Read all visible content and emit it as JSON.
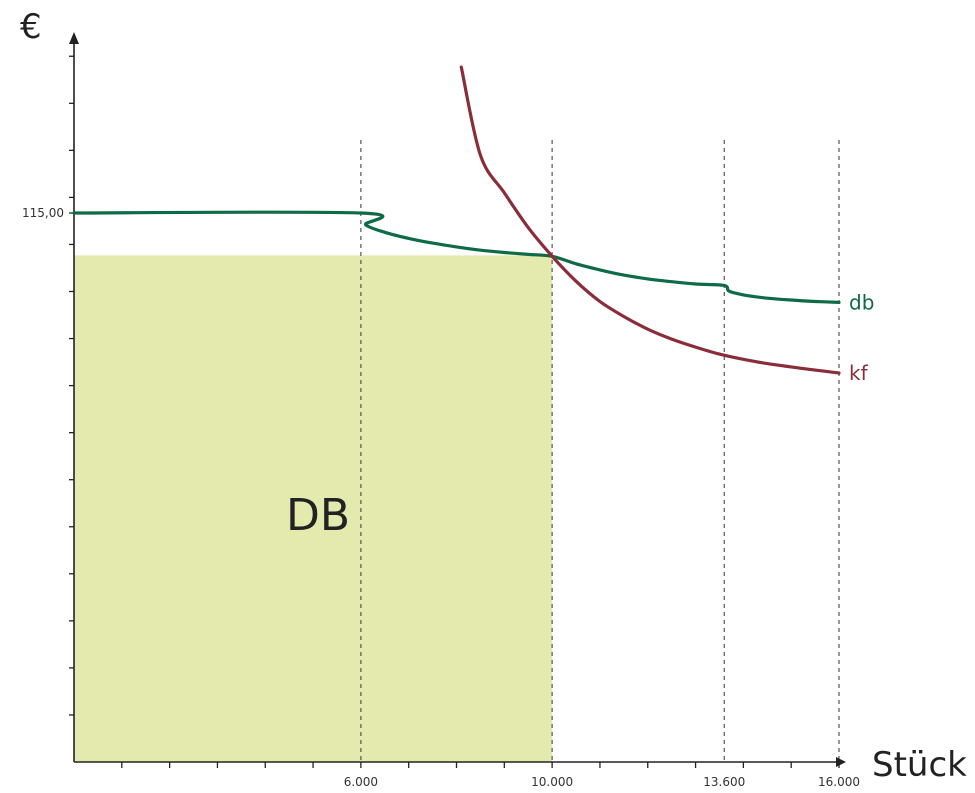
{
  "chart_data": {
    "type": "line",
    "ylabel": "€",
    "xlabel": "Stück",
    "xlim": [
      0,
      16000
    ],
    "x_ticks": [
      {
        "value": 6000,
        "label": "6.000"
      },
      {
        "value": 10000,
        "label": "10.000"
      },
      {
        "value": 13600,
        "label": "13.600"
      },
      {
        "value": 16000,
        "label": "16.000"
      }
    ],
    "y_ticks": [
      {
        "value": 115,
        "label": "115,00"
      }
    ],
    "reference_lines_x": [
      6000,
      10000,
      13600,
      16000
    ],
    "shaded_area": {
      "label": "DB",
      "x_range": [
        0,
        10000
      ],
      "y_top": 106,
      "color": "#e4eaae"
    },
    "series": [
      {
        "name": "db",
        "color": "#0d6b45",
        "x": [
          0,
          6000,
          6100,
          6500,
          7000,
          7500,
          8000,
          8500,
          9000,
          9500,
          10000,
          10500,
          11000,
          11500,
          12000,
          12500,
          13000,
          13600,
          13700,
          14000,
          14500,
          15000,
          15500,
          16000
        ],
        "y": [
          115,
          115,
          112.5,
          110.9,
          109.6,
          108.6,
          107.8,
          107.1,
          106.6,
          106.2,
          105.8,
          104.2,
          102.9,
          101.8,
          101.0,
          100.4,
          99.9,
          99.6,
          98.4,
          97.6,
          96.9,
          96.5,
          96.2,
          96.0
        ]
      },
      {
        "name": "kf",
        "color": "#8b2d39",
        "x": [
          8100,
          8500,
          9000,
          9500,
          10000,
          10500,
          11000,
          11500,
          12000,
          12500,
          13000,
          13500,
          14000,
          14500,
          15000,
          15500,
          16000
        ],
        "y": [
          146,
          127.3,
          119.3,
          111.9,
          105.8,
          100.5,
          96.2,
          93.0,
          90.3,
          88.2,
          86.5,
          85.0,
          83.9,
          83.0,
          82.3,
          81.6,
          81.0
        ]
      }
    ]
  }
}
